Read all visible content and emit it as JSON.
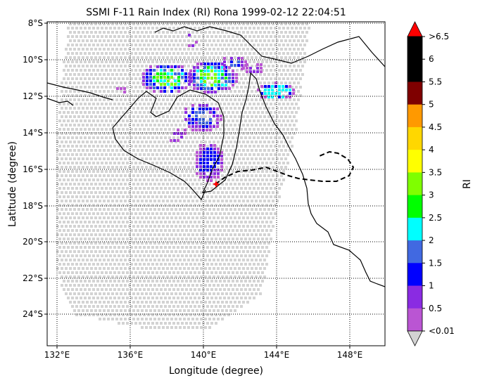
{
  "title": "SSMI F-11 Rain Index (RI) Rona 1999-02-12 22:04:51",
  "xlabel": "Longitude (degree)",
  "ylabel": "Latitude (degree)",
  "colorbar_label": "RI",
  "x_ticks": [
    "132°E",
    "136°E",
    "140°E",
    "144°E",
    "148°E"
  ],
  "y_ticks": [
    "8°S",
    "10°S",
    "12°S",
    "14°S",
    "16°S",
    "18°S",
    "20°S",
    "22°S",
    "24°S"
  ],
  "colorbar": {
    "tick_labels": [
      ">6.5",
      "6",
      "5.5",
      "5",
      "4.5",
      "4",
      "3.5",
      "3",
      "2.5",
      "2",
      "1.5",
      "1",
      "0.5",
      "<0.01"
    ],
    "bins_top_to_bottom": [
      {
        "color": "#ff0000",
        "shape": "triangle-max"
      },
      {
        "color": "#000000"
      },
      {
        "color": "#000000"
      },
      {
        "color": "#7f0000"
      },
      {
        "color": "#ff9900"
      },
      {
        "color": "#ffd700"
      },
      {
        "color": "#ffff00"
      },
      {
        "color": "#7fff00"
      },
      {
        "color": "#00ff00"
      },
      {
        "color": "#00ffff"
      },
      {
        "color": "#4169e1"
      },
      {
        "color": "#0000ff"
      },
      {
        "color": "#8a2be2"
      },
      {
        "color": "#ba55d3"
      },
      {
        "color": "#d3d3d3",
        "shape": "triangle-min"
      }
    ]
  },
  "colors": {
    "no_rain": "#d3d3d3",
    "track": "#000000",
    "storm_marker": "#ff0000"
  }
}
